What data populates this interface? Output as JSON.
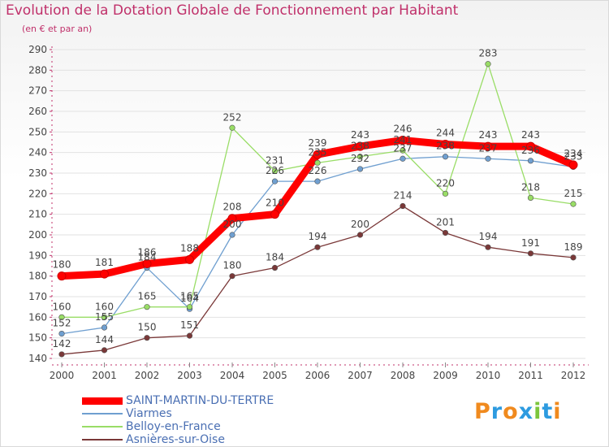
{
  "header": {
    "title": "Evolution de la Dotation Globale de Fonctionnement par Habitant",
    "subtitle": "(en € et par an)"
  },
  "chart_data": {
    "type": "line",
    "title": "Evolution de la Dotation Globale de Fonctionnement par Habitant",
    "subtitle": "(en € et par an)",
    "xlabel": "",
    "ylabel": "",
    "x": [
      2000,
      2001,
      2002,
      2003,
      2004,
      2005,
      2006,
      2007,
      2008,
      2009,
      2010,
      2011,
      2012
    ],
    "ylim": [
      140,
      290
    ],
    "yticks": [
      140,
      150,
      160,
      170,
      180,
      190,
      200,
      210,
      220,
      230,
      240,
      250,
      260,
      270,
      280,
      290
    ],
    "grid": "horizontal",
    "legend_position": "bottom-left",
    "series": [
      {
        "name": "SAINT-MARTIN-DU-TERTRE",
        "color": "#ff0000",
        "emphasis": "thick",
        "values": [
          180,
          181,
          186,
          188,
          208,
          210,
          239,
          243,
          246,
          244,
          243,
          243,
          234
        ]
      },
      {
        "name": "Viarmes",
        "color": "#6f9fd0",
        "emphasis": "thin",
        "values": [
          152,
          155,
          184,
          164,
          200,
          226,
          226,
          232,
          237,
          238,
          237,
          236,
          233
        ]
      },
      {
        "name": "Belloy-en-France",
        "color": "#99dd66",
        "emphasis": "thin",
        "values": [
          160,
          160,
          165,
          165,
          252,
          231,
          235,
          238,
          241,
          220,
          283,
          218,
          215
        ]
      },
      {
        "name": "Asnières-sur-Oise",
        "color": "#7a3838",
        "emphasis": "thin",
        "values": [
          142,
          144,
          150,
          151,
          180,
          184,
          194,
          200,
          214,
          201,
          194,
          191,
          189
        ]
      }
    ]
  },
  "logo": {
    "text": "Proxiti",
    "colors": [
      "#f08a1e",
      "#2d9be0",
      "#f08a1e",
      "#2d9be0",
      "#7cc63d",
      "#2d9be0",
      "#f08a1e"
    ]
  }
}
